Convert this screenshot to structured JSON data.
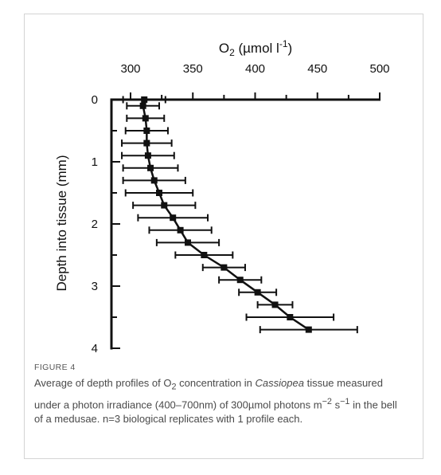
{
  "chart_data": {
    "type": "scatter",
    "xlabel_main": "O",
    "xlabel_sub": "2",
    "xlabel_unit_pre": " (µmol l",
    "xlabel_unit_sup": "-1",
    "xlabel_unit_post": ")",
    "ylabel": "Depth into tissue (mm)",
    "xlim": [
      280,
      500
    ],
    "ylim": [
      0,
      4
    ],
    "x_axis_position": "top",
    "y_axis_inverted": true,
    "grid": false,
    "x_ticks": [
      300,
      350,
      400,
      450,
      500
    ],
    "y_ticks": [
      0,
      1,
      2,
      3,
      4
    ],
    "series": [
      {
        "marker": "square",
        "connect": true,
        "color": "#111111",
        "points": [
          {
            "depth": 0.0,
            "o2": 311,
            "err": 17
          },
          {
            "depth": 0.1,
            "o2": 310,
            "err": 13
          },
          {
            "depth": 0.3,
            "o2": 312,
            "err": 15
          },
          {
            "depth": 0.5,
            "o2": 313,
            "err": 17
          },
          {
            "depth": 0.7,
            "o2": 313,
            "err": 20
          },
          {
            "depth": 0.9,
            "o2": 314,
            "err": 21
          },
          {
            "depth": 1.1,
            "o2": 316,
            "err": 22
          },
          {
            "depth": 1.3,
            "o2": 319,
            "err": 25
          },
          {
            "depth": 1.5,
            "o2": 323,
            "err": 27
          },
          {
            "depth": 1.7,
            "o2": 327,
            "err": 25
          },
          {
            "depth": 1.9,
            "o2": 334,
            "err": 28
          },
          {
            "depth": 2.1,
            "o2": 340,
            "err": 25
          },
          {
            "depth": 2.3,
            "o2": 346,
            "err": 25
          },
          {
            "depth": 2.5,
            "o2": 359,
            "err": 23
          },
          {
            "depth": 2.7,
            "o2": 375,
            "err": 17
          },
          {
            "depth": 2.9,
            "o2": 388,
            "err": 17
          },
          {
            "depth": 3.1,
            "o2": 402,
            "err": 15
          },
          {
            "depth": 3.3,
            "o2": 416,
            "err": 14
          },
          {
            "depth": 3.5,
            "o2": 428,
            "err": 35
          },
          {
            "depth": 3.7,
            "o2": 443,
            "err": 39
          }
        ]
      }
    ]
  },
  "caption": {
    "label": "FIGURE 4",
    "text_1": "Average of depth profiles of O",
    "text_1_sub": "2",
    "text_2": " concentration in ",
    "text_italic": "Cassiopea",
    "text_3": " tissue measured under a photon irradiance (400–700nm) of 300µmol photons m",
    "sup_1": "−2",
    "text_4": " s",
    "sup_2": "−1",
    "text_5": " in the bell of a medusae. n=3 biological replicates with 1 profile each."
  }
}
